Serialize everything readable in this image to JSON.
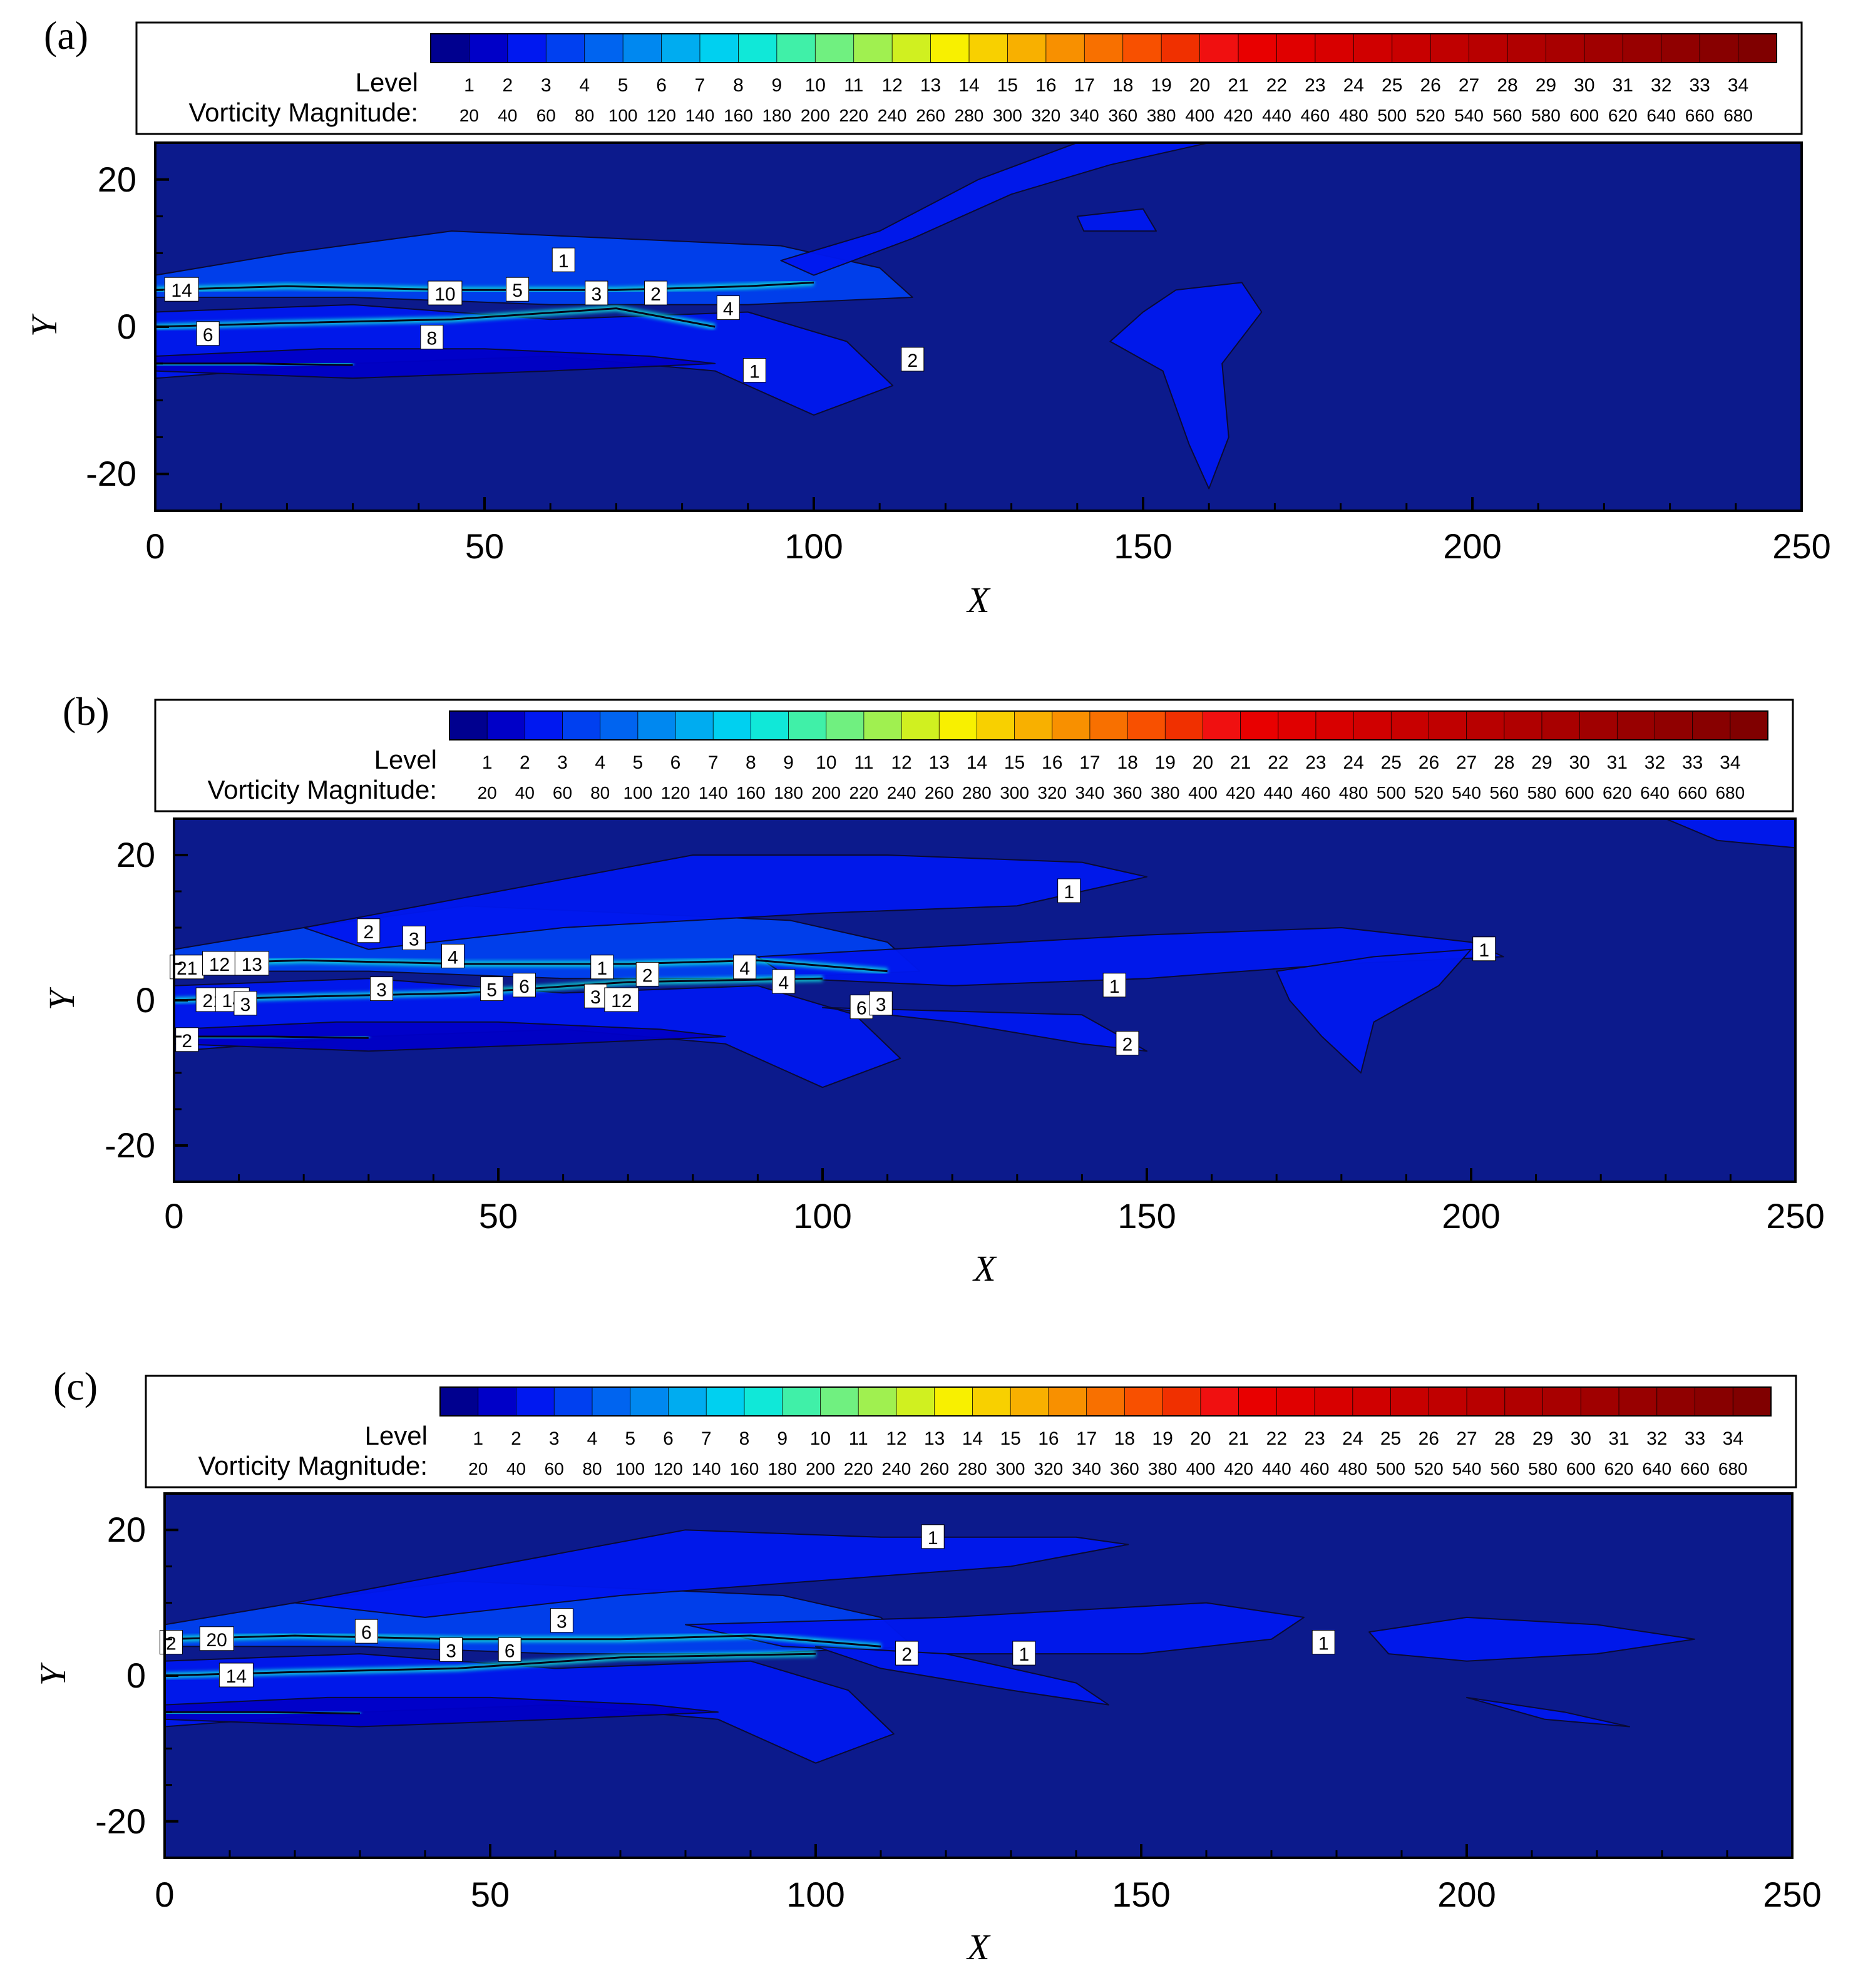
{
  "colors": {
    "background": "#0c1a8c",
    "plot_frame": "#000000",
    "contour_line": "#0a0a30",
    "levels": [
      "#00008f",
      "#0000c8",
      "#0018f0",
      "#0040f0",
      "#0064f0",
      "#0088f0",
      "#00acf0",
      "#00d0f0",
      "#10e8d8",
      "#40f0a8",
      "#70f080",
      "#a0f050",
      "#d0f020",
      "#f8f000",
      "#f8d000",
      "#f8b000",
      "#f89000",
      "#f87000",
      "#f85000",
      "#f03000",
      "#f01010",
      "#e80000",
      "#e00000",
      "#d80000",
      "#d00000",
      "#c80000",
      "#c00000",
      "#b80000",
      "#b00000",
      "#a80000",
      "#a00000",
      "#980000",
      "#900000",
      "#880000",
      "#800000"
    ]
  },
  "legend": {
    "level_label": "Level",
    "magnitude_label": "Vorticity Magnitude:",
    "levels": [
      "1",
      "2",
      "3",
      "4",
      "5",
      "6",
      "7",
      "8",
      "9",
      "10",
      "11",
      "12",
      "13",
      "14",
      "15",
      "16",
      "17",
      "18",
      "19",
      "20",
      "21",
      "22",
      "23",
      "24",
      "25",
      "26",
      "27",
      "28",
      "29",
      "30",
      "31",
      "32",
      "33",
      "34"
    ],
    "magnitudes": [
      "20",
      "40",
      "60",
      "80",
      "100",
      "120",
      "140",
      "160",
      "180",
      "200",
      "220",
      "240",
      "260",
      "280",
      "300",
      "320",
      "340",
      "360",
      "380",
      "400",
      "420",
      "440",
      "460",
      "480",
      "500",
      "520",
      "540",
      "560",
      "580",
      "600",
      "620",
      "640",
      "660",
      "680"
    ]
  },
  "chart_data": [
    {
      "type": "heatmap",
      "panel": "(a)",
      "xlabel": "X",
      "ylabel": "Y",
      "xlim": [
        0,
        250
      ],
      "ylim": [
        -25,
        25
      ],
      "xticks": [
        "0",
        "50",
        "100",
        "150",
        "200",
        "250"
      ],
      "yticks": [
        "20",
        "0",
        "-20"
      ],
      "contour_labels": [
        {
          "text": "14",
          "x": 4,
          "y": 5
        },
        {
          "text": "1",
          "x": 62,
          "y": 9
        },
        {
          "text": "10",
          "x": 44,
          "y": 4.5
        },
        {
          "text": "5",
          "x": 55,
          "y": 5
        },
        {
          "text": "3",
          "x": 67,
          "y": 4.5
        },
        {
          "text": "2",
          "x": 76,
          "y": 4.5
        },
        {
          "text": "4",
          "x": 87,
          "y": 2.5
        },
        {
          "text": "6",
          "x": 8,
          "y": -1
        },
        {
          "text": "8",
          "x": 42,
          "y": -1.5
        },
        {
          "text": "1",
          "x": 91,
          "y": -6
        },
        {
          "text": "2",
          "x": 115,
          "y": -4.5
        }
      ]
    },
    {
      "type": "heatmap",
      "panel": "(b)",
      "xlabel": "X",
      "ylabel": "Y",
      "xlim": [
        0,
        250
      ],
      "ylim": [
        -25,
        25
      ],
      "xticks": [
        "0",
        "50",
        "100",
        "150",
        "200",
        "250"
      ],
      "yticks": [
        "20",
        "0",
        "-20"
      ],
      "contour_labels": [
        {
          "text": "1",
          "x": 138,
          "y": 15
        },
        {
          "text": "2",
          "x": 30,
          "y": 9.5
        },
        {
          "text": "3",
          "x": 37,
          "y": 8.5
        },
        {
          "text": "4",
          "x": 43,
          "y": 6
        },
        {
          "text": "21",
          "x": 2,
          "y": 4.5
        },
        {
          "text": "12",
          "x": 7,
          "y": 5
        },
        {
          "text": "13",
          "x": 12,
          "y": 5
        },
        {
          "text": "1",
          "x": 66,
          "y": 4.5
        },
        {
          "text": "2",
          "x": 73,
          "y": 3.5
        },
        {
          "text": "4",
          "x": 88,
          "y": 4.5
        },
        {
          "text": "4",
          "x": 94,
          "y": 2.5
        },
        {
          "text": "1",
          "x": 202,
          "y": 7
        },
        {
          "text": "1",
          "x": 145,
          "y": 2
        },
        {
          "text": "3",
          "x": 32,
          "y": 1.5
        },
        {
          "text": "5",
          "x": 49,
          "y": 1.5
        },
        {
          "text": "6",
          "x": 54,
          "y": 2
        },
        {
          "text": "21",
          "x": 6,
          "y": 0
        },
        {
          "text": "14",
          "x": 9,
          "y": 0
        },
        {
          "text": "3",
          "x": 11,
          "y": -0.5
        },
        {
          "text": "3",
          "x": 65,
          "y": 0.5
        },
        {
          "text": "12",
          "x": 69,
          "y": 0
        },
        {
          "text": "6",
          "x": 106,
          "y": -1
        },
        {
          "text": "3",
          "x": 109,
          "y": -0.5
        },
        {
          "text": "2",
          "x": 2,
          "y": -5.5
        },
        {
          "text": "2",
          "x": 147,
          "y": -6
        }
      ]
    },
    {
      "type": "heatmap",
      "panel": "(c)",
      "xlabel": "X",
      "ylabel": "Y",
      "xlim": [
        0,
        250
      ],
      "ylim": [
        -25,
        25
      ],
      "xticks": [
        "0",
        "50",
        "100",
        "150",
        "200",
        "250"
      ],
      "yticks": [
        "20",
        "0",
        "-20"
      ],
      "contour_labels": [
        {
          "text": "1",
          "x": 118,
          "y": 19
        },
        {
          "text": "20",
          "x": 8,
          "y": 5
        },
        {
          "text": "2",
          "x": 1,
          "y": 4.5
        },
        {
          "text": "6",
          "x": 31,
          "y": 6
        },
        {
          "text": "3",
          "x": 61,
          "y": 7.5
        },
        {
          "text": "3",
          "x": 44,
          "y": 3.5
        },
        {
          "text": "6",
          "x": 53,
          "y": 3.5
        },
        {
          "text": "2",
          "x": 114,
          "y": 3
        },
        {
          "text": "1",
          "x": 132,
          "y": 3
        },
        {
          "text": "1",
          "x": 178,
          "y": 4.5
        },
        {
          "text": "14",
          "x": 11,
          "y": 0
        }
      ]
    }
  ]
}
